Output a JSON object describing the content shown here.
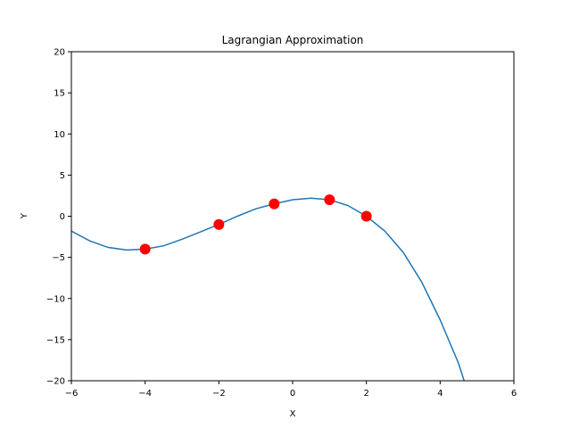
{
  "chart_data": {
    "type": "line",
    "title": "Lagrangian Approximation",
    "xlabel": "X",
    "ylabel": "Y",
    "xlim": [
      -6,
      6
    ],
    "ylim": [
      -20,
      20
    ],
    "xticks": [
      -6,
      -4,
      -2,
      0,
      2,
      4,
      6
    ],
    "yticks": [
      -20,
      -15,
      -10,
      -5,
      0,
      5,
      10,
      15,
      20
    ],
    "grid": false,
    "series": [
      {
        "type": "line",
        "color": "#1f77b4",
        "x": [
          -6,
          -5.5,
          -5,
          -4.5,
          -4,
          -3.5,
          -3,
          -2.5,
          -2,
          -1.5,
          -1,
          -0.5,
          0,
          0.5,
          1,
          1.5,
          2,
          2.5,
          3,
          3.5,
          4,
          4.5,
          4.65
        ],
        "y": [
          -1.8,
          -3.0,
          -3.8,
          -4.1,
          -4.0,
          -3.6,
          -2.8,
          -1.9,
          -1.0,
          0.0,
          0.9,
          1.5,
          2.0,
          2.2,
          2.0,
          1.3,
          0.0,
          -1.8,
          -4.4,
          -8.0,
          -12.6,
          -17.9,
          -20.0
        ]
      },
      {
        "type": "scatter",
        "color": "#ff0000",
        "x": [
          -4,
          -2,
          -0.5,
          1,
          2
        ],
        "y": [
          -4,
          -1,
          1.5,
          2,
          0
        ]
      }
    ]
  }
}
